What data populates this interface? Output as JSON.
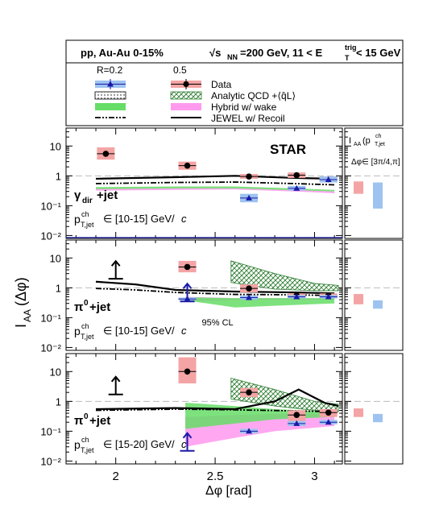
{
  "header": {
    "system": "pp, Au-Au 0-15%",
    "energy_label": "√s",
    "energy_sub": "NN",
    "energy_value": "=200 GeV, 11 < E",
    "trig_sup": "trig",
    "trig_sub": "T",
    "trig_tail": " < 15 GeV"
  },
  "legend": {
    "col1": "R=0.2",
    "col2": "0.5",
    "entries": [
      {
        "key": "data",
        "label": "Data"
      },
      {
        "key": "qcd",
        "label": "Analytic QCD +⟨q̂L⟩"
      },
      {
        "key": "hybrid",
        "label": "Hybrid w/ wake"
      },
      {
        "key": "jewel",
        "label": "JEWEL w/ Recoil"
      }
    ]
  },
  "colors": {
    "r02_marker": "#1a1aa8",
    "r02_box": "#9ec3f0",
    "r05_box": "#f4a4a4",
    "hybrid_r02": "#66dd66",
    "hybrid_r05": "#ff99ee",
    "qcd_hatch": "#2e7d32"
  },
  "chart_data": {
    "type": "scatter",
    "experiment": "STAR",
    "xlabel": "Δφ [rad]",
    "ylabel": "I",
    "ylabel_sub": "AA",
    "ylabel_tail": "(Δφ)",
    "xlim": [
      1.75,
      3.14
    ],
    "ylim": [
      0.008,
      40
    ],
    "yscale": "log",
    "xticks": [
      "2",
      "2.5",
      "3"
    ],
    "yticks": [
      "10",
      "1",
      "10⁻¹",
      "10⁻²"
    ],
    "side_label": {
      "line1": "I",
      "line1_sub": "AA",
      "line1_tail": "(p",
      "ch_sup": "ch",
      "ch_sub": "T,jet",
      "range": "Δφ∈ [3π/4,π]"
    },
    "panels": [
      {
        "trigger": "γ",
        "trigger_sub": "dir",
        "trigger_tail": "+jet",
        "pt_label": "p",
        "pt_sup": "ch",
        "pt_sub": "T,jet",
        "pt_range": "∈ [10-15] GeV/",
        "pt_unit": "c",
        "r05_points": [
          {
            "x": 1.95,
            "y": 5.5,
            "ylo": 3.5,
            "yhi": 9.0
          },
          {
            "x": 2.36,
            "y": 2.2,
            "ylo": 1.6,
            "yhi": 3.0
          },
          {
            "x": 2.67,
            "y": 0.95,
            "ylo": 0.8,
            "yhi": 1.15
          },
          {
            "x": 2.91,
            "y": 1.05,
            "ylo": 0.85,
            "yhi": 1.3
          },
          {
            "x": 3.07,
            "y": 0.75,
            "ylo": 0.6,
            "yhi": 0.95
          }
        ],
        "r02_points": [
          {
            "x": 2.67,
            "y": 0.18,
            "ylo": 0.13,
            "yhi": 0.25
          },
          {
            "x": 2.91,
            "y": 0.38,
            "ylo": 0.32,
            "yhi": 0.46
          },
          {
            "x": 3.07,
            "y": 0.75,
            "ylo": 0.6,
            "yhi": 0.95
          }
        ],
        "side_r05": {
          "y": 0.4,
          "ylo": 0.25,
          "yhi": 0.65
        },
        "side_r02": {
          "y": 0.25,
          "ylo": 0.08,
          "yhi": 0.6
        },
        "jewel_r05": [
          [
            1.9,
            0.8
          ],
          [
            2.3,
            0.9
          ],
          [
            2.6,
            1.0
          ],
          [
            2.9,
            0.85
          ],
          [
            3.1,
            0.8
          ]
        ],
        "jewel_r02": [
          [
            1.9,
            0.55
          ],
          [
            2.3,
            0.6
          ],
          [
            2.6,
            0.62
          ],
          [
            2.9,
            0.55
          ],
          [
            3.1,
            0.5
          ]
        ],
        "hybrid_r05": [
          [
            1.9,
            0.32,
            0.38
          ],
          [
            2.3,
            0.34,
            0.4
          ],
          [
            2.6,
            0.35,
            0.4
          ],
          [
            2.9,
            0.3,
            0.34
          ],
          [
            3.1,
            0.26,
            0.3
          ]
        ],
        "hybrid_r02": [
          [
            1.9,
            0.36,
            0.42
          ],
          [
            2.3,
            0.38,
            0.44
          ],
          [
            2.6,
            0.38,
            0.44
          ],
          [
            2.9,
            0.33,
            0.38
          ],
          [
            3.1,
            0.3,
            0.34
          ]
        ],
        "qcd": [],
        "limits": [],
        "cl_label": ""
      },
      {
        "trigger": "π",
        "trigger_sup": "0",
        "trigger_tail": "+jet",
        "pt_label": "p",
        "pt_sup": "ch",
        "pt_sub": "T,jet",
        "pt_range": "∈ [10-15] GeV/",
        "pt_unit": "c",
        "r05_points": [
          {
            "x": 2.36,
            "y": 5.0,
            "ylo": 3.3,
            "yhi": 8.0
          },
          {
            "x": 2.67,
            "y": 0.95,
            "ylo": 0.7,
            "yhi": 1.3
          },
          {
            "x": 2.91,
            "y": 0.55,
            "ylo": 0.45,
            "yhi": 0.65
          },
          {
            "x": 3.07,
            "y": 0.55,
            "ylo": 0.45,
            "yhi": 0.65
          }
        ],
        "r02_points": [
          {
            "x": 2.36,
            "y": 0.42,
            "ylo": 0.38,
            "yhi": 0.47
          },
          {
            "x": 2.67,
            "y": 0.47,
            "ylo": 0.4,
            "yhi": 0.55
          },
          {
            "x": 2.91,
            "y": 0.5,
            "ylo": 0.44,
            "yhi": 0.57
          },
          {
            "x": 3.07,
            "y": 0.5,
            "ylo": 0.44,
            "yhi": 0.57
          }
        ],
        "side_r05": {
          "y": 0.42,
          "ylo": 0.28,
          "yhi": 0.62
        },
        "side_r02": {
          "y": 0.28,
          "ylo": 0.2,
          "yhi": 0.38
        },
        "jewel_r05": [
          [
            1.9,
            1.6
          ],
          [
            2.1,
            1.3
          ],
          [
            2.3,
            0.85
          ],
          [
            2.6,
            0.75
          ],
          [
            2.9,
            0.7
          ],
          [
            3.1,
            0.65
          ]
        ],
        "jewel_r02": [
          [
            1.9,
            0.95
          ],
          [
            2.1,
            0.85
          ],
          [
            2.3,
            0.7
          ],
          [
            2.6,
            0.6
          ],
          [
            2.9,
            0.58
          ],
          [
            3.1,
            0.55
          ]
        ],
        "hybrid_r05": [
          [
            2.35,
            0.35,
            0.5
          ],
          [
            2.6,
            0.38,
            0.45
          ],
          [
            2.8,
            0.4,
            0.45
          ],
          [
            3.1,
            0.4,
            0.44
          ]
        ],
        "hybrid_r02": [
          [
            2.35,
            0.38,
            0.48
          ],
          [
            2.6,
            0.22,
            0.45
          ],
          [
            2.8,
            0.25,
            0.45
          ],
          [
            3.1,
            0.3,
            0.45
          ]
        ],
        "qcd": [
          [
            2.58,
            1.5,
            8.0
          ],
          [
            2.8,
            0.9,
            3.0
          ],
          [
            3.0,
            0.8,
            1.4
          ],
          [
            3.12,
            0.8,
            1.2
          ]
        ],
        "limits": [
          {
            "x": 2.0,
            "y": 2.0,
            "series": "R=0.5"
          },
          {
            "x": 2.36,
            "y": 0.35,
            "series": "R=0.2"
          }
        ],
        "cl_label": "95% CL"
      },
      {
        "trigger": "π",
        "trigger_sup": "0",
        "trigger_tail": "+jet",
        "pt_label": "p",
        "pt_sup": "ch",
        "pt_sub": "T,jet",
        "pt_range": "∈ [15-20] GeV/",
        "pt_unit": "c",
        "r05_points": [
          {
            "x": 2.36,
            "y": 10.0,
            "ylo": 4.0,
            "yhi": 30.0
          },
          {
            "x": 2.67,
            "y": 2.0,
            "ylo": 1.4,
            "yhi": 2.8
          },
          {
            "x": 2.91,
            "y": 0.35,
            "ylo": 0.22,
            "yhi": 0.5
          },
          {
            "x": 3.07,
            "y": 0.42,
            "ylo": 0.3,
            "yhi": 0.55
          }
        ],
        "r02_points": [
          {
            "x": 2.67,
            "y": 0.1,
            "ylo": 0.085,
            "yhi": 0.12
          },
          {
            "x": 2.91,
            "y": 0.18,
            "ylo": 0.15,
            "yhi": 0.22
          },
          {
            "x": 3.07,
            "y": 0.2,
            "ylo": 0.17,
            "yhi": 0.24
          }
        ],
        "side_r05": {
          "y": 0.42,
          "ylo": 0.3,
          "yhi": 0.58
        },
        "side_r02": {
          "y": 0.28,
          "ylo": 0.2,
          "yhi": 0.38
        },
        "jewel_r05": [
          [
            1.9,
            0.55
          ],
          [
            2.3,
            0.6
          ],
          [
            2.6,
            0.55
          ],
          [
            2.8,
            1.0
          ],
          [
            2.92,
            2.5
          ],
          [
            3.05,
            0.9
          ],
          [
            3.12,
            0.7
          ]
        ],
        "jewel_r02": [
          [
            1.9,
            0.5
          ],
          [
            2.3,
            0.55
          ],
          [
            2.6,
            0.52
          ],
          [
            2.9,
            0.48
          ],
          [
            3.1,
            0.45
          ]
        ],
        "hybrid_r05": [
          [
            2.35,
            0.03,
            0.3
          ],
          [
            2.6,
            0.06,
            0.35
          ],
          [
            2.8,
            0.1,
            0.38
          ],
          [
            3.1,
            0.15,
            0.4
          ]
        ],
        "hybrid_r02": [
          [
            2.35,
            0.12,
            0.9
          ],
          [
            2.6,
            0.18,
            0.7
          ],
          [
            2.8,
            0.25,
            0.55
          ],
          [
            3.1,
            0.3,
            0.45
          ]
        ],
        "qcd": [
          [
            2.58,
            1.2,
            6.0
          ],
          [
            2.8,
            0.7,
            2.5
          ],
          [
            3.0,
            0.5,
            1.0
          ],
          [
            3.12,
            0.45,
            0.8
          ]
        ],
        "limits": [
          {
            "x": 2.0,
            "y": 1.7,
            "series": "R=0.5"
          },
          {
            "x": 2.36,
            "y": 0.022,
            "series": "R=0.2"
          }
        ],
        "cl_label": ""
      }
    ]
  }
}
